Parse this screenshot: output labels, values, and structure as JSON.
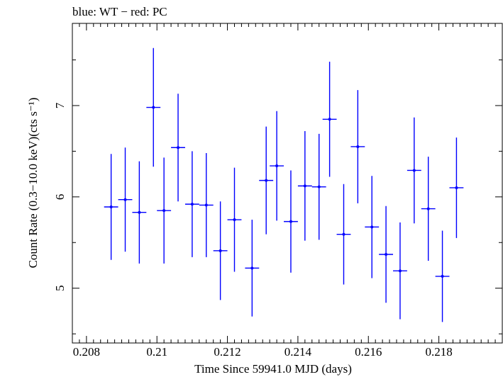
{
  "chart_data": {
    "type": "scatter",
    "title": "blue: WT − red: PC",
    "xlabel": "Time Since 59941.0 MJD (days)",
    "ylabel": "Count Rate (0.3−10.0 keV)(cts s⁻¹)",
    "xlim": [
      0.2076,
      0.2198
    ],
    "ylim": [
      4.4,
      7.9
    ],
    "x_ticks": [
      {
        "value": 0.208,
        "label": "0.208"
      },
      {
        "value": 0.21,
        "label": "0.21"
      },
      {
        "value": 0.212,
        "label": "0.212"
      },
      {
        "value": 0.214,
        "label": "0.214"
      },
      {
        "value": 0.216,
        "label": "0.216"
      },
      {
        "value": 0.218,
        "label": "0.218"
      }
    ],
    "y_ticks": [
      {
        "value": 5,
        "label": "5"
      },
      {
        "value": 6,
        "label": "6"
      },
      {
        "value": 7,
        "label": "7"
      }
    ],
    "grid": false,
    "series": [
      {
        "name": "WT",
        "color": "#0000ff",
        "xerr": 0.0002,
        "points": [
          {
            "x": 0.2087,
            "y": 5.89,
            "yerr": 0.58
          },
          {
            "x": 0.2091,
            "y": 5.97,
            "yerr": 0.57
          },
          {
            "x": 0.2095,
            "y": 5.83,
            "yerr": 0.56
          },
          {
            "x": 0.2099,
            "y": 6.98,
            "yerr": 0.65
          },
          {
            "x": 0.2102,
            "y": 5.85,
            "yerr": 0.58
          },
          {
            "x": 0.2106,
            "y": 6.54,
            "yerr": 0.59
          },
          {
            "x": 0.211,
            "y": 5.92,
            "yerr": 0.58
          },
          {
            "x": 0.2114,
            "y": 5.91,
            "yerr": 0.57
          },
          {
            "x": 0.2118,
            "y": 5.41,
            "yerr": 0.54
          },
          {
            "x": 0.2122,
            "y": 5.75,
            "yerr": 0.57
          },
          {
            "x": 0.2127,
            "y": 5.22,
            "yerr": 0.53
          },
          {
            "x": 0.2131,
            "y": 6.18,
            "yerr": 0.59
          },
          {
            "x": 0.2134,
            "y": 6.34,
            "yerr": 0.6
          },
          {
            "x": 0.2138,
            "y": 5.73,
            "yerr": 0.56
          },
          {
            "x": 0.2142,
            "y": 6.12,
            "yerr": 0.6
          },
          {
            "x": 0.2146,
            "y": 6.11,
            "yerr": 0.58
          },
          {
            "x": 0.2149,
            "y": 6.85,
            "yerr": 0.63
          },
          {
            "x": 0.2153,
            "y": 5.59,
            "yerr": 0.55
          },
          {
            "x": 0.2157,
            "y": 6.55,
            "yerr": 0.62
          },
          {
            "x": 0.2161,
            "y": 5.67,
            "yerr": 0.56
          },
          {
            "x": 0.2165,
            "y": 5.37,
            "yerr": 0.53
          },
          {
            "x": 0.2169,
            "y": 5.19,
            "yerr": 0.53
          },
          {
            "x": 0.2173,
            "y": 6.29,
            "yerr": 0.58
          },
          {
            "x": 0.2177,
            "y": 5.87,
            "yerr": 0.57
          },
          {
            "x": 0.2181,
            "y": 5.13,
            "yerr": 0.5
          },
          {
            "x": 0.2185,
            "y": 6.1,
            "yerr": 0.55
          }
        ]
      }
    ]
  }
}
